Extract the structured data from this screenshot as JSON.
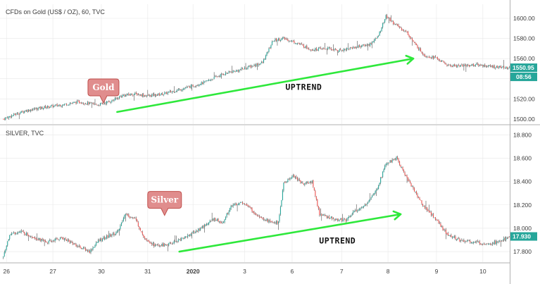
{
  "colors": {
    "up": "#26a69a",
    "down": "#ef5350",
    "wick": "#2b2b2b",
    "arrow": "#2ee83b",
    "callout_fill": "#e08d8d",
    "callout_stroke": "#c0504d",
    "price_badge": "#26a69a",
    "grid": "#e8e8e8",
    "axis_line": "#b0b0b0"
  },
  "chart_data": [
    {
      "type": "candlestick",
      "title": "CFDs on Gold (US$ / OZ), 60, TVC",
      "y_ticks": [
        "1500.00",
        "1520.00",
        "1540.00",
        "1560.00",
        "1580.00",
        "1600.00"
      ],
      "ylim": [
        1495,
        1614
      ],
      "last_price": "1550.95",
      "countdown": "08:56",
      "anchors": [
        [
          0,
          1500
        ],
        [
          7,
          1503
        ],
        [
          20,
          1508
        ],
        [
          35,
          1511
        ],
        [
          55,
          1514
        ],
        [
          72,
          1517
        ],
        [
          90,
          1514
        ],
        [
          103,
          1518
        ],
        [
          112,
          1523
        ],
        [
          124,
          1525
        ],
        [
          137,
          1523
        ],
        [
          152,
          1525
        ],
        [
          170,
          1530
        ],
        [
          190,
          1536
        ],
        [
          209,
          1545
        ],
        [
          222,
          1548
        ],
        [
          234,
          1552
        ],
        [
          246,
          1556
        ],
        [
          256,
          1578
        ],
        [
          266,
          1580
        ],
        [
          280,
          1575
        ],
        [
          292,
          1569
        ],
        [
          308,
          1570
        ],
        [
          318,
          1568
        ],
        [
          332,
          1571
        ],
        [
          347,
          1574
        ],
        [
          355,
          1581
        ],
        [
          363,
          1602
        ],
        [
          373,
          1593
        ],
        [
          383,
          1586
        ],
        [
          390,
          1575
        ],
        [
          400,
          1563
        ],
        [
          410,
          1561
        ],
        [
          422,
          1553
        ],
        [
          436,
          1553
        ],
        [
          450,
          1554
        ],
        [
          464,
          1552
        ],
        [
          480,
          1551
        ]
      ],
      "annotations": [
        {
          "type": "callout",
          "text": "Gold",
          "x": 95,
          "y": 1516
        },
        {
          "type": "trend-arrow",
          "text": "UPTREND",
          "from": [
            108,
            1507
          ],
          "to": [
            389,
            1560
          ],
          "label_at": [
            285,
            1529
          ]
        }
      ]
    },
    {
      "type": "candlestick",
      "title": "SILVER, TVC",
      "y_ticks": [
        "17.800",
        "18.000",
        "18.200",
        "18.400",
        "18.600",
        "18.800"
      ],
      "ylim": [
        17.71,
        18.88
      ],
      "last_price": "17.930",
      "anchors": [
        [
          0,
          17.75
        ],
        [
          6,
          17.95
        ],
        [
          17,
          17.97
        ],
        [
          30,
          17.92
        ],
        [
          42,
          17.88
        ],
        [
          56,
          17.92
        ],
        [
          70,
          17.85
        ],
        [
          82,
          17.8
        ],
        [
          91,
          17.9
        ],
        [
          100,
          17.93
        ],
        [
          109,
          17.97
        ],
        [
          115,
          18.12
        ],
        [
          125,
          18.08
        ],
        [
          134,
          17.92
        ],
        [
          144,
          17.85
        ],
        [
          156,
          17.86
        ],
        [
          172,
          17.92
        ],
        [
          187,
          18.0
        ],
        [
          200,
          18.08
        ],
        [
          208,
          18.05
        ],
        [
          217,
          18.2
        ],
        [
          228,
          18.22
        ],
        [
          240,
          18.12
        ],
        [
          254,
          18.05
        ],
        [
          261,
          18.05
        ],
        [
          266,
          18.38
        ],
        [
          275,
          18.45
        ],
        [
          284,
          18.38
        ],
        [
          293,
          18.4
        ],
        [
          300,
          18.12
        ],
        [
          306,
          18.1
        ],
        [
          315,
          18.08
        ],
        [
          325,
          18.07
        ],
        [
          332,
          18.14
        ],
        [
          342,
          18.18
        ],
        [
          355,
          18.35
        ],
        [
          363,
          18.55
        ],
        [
          373,
          18.6
        ],
        [
          386,
          18.38
        ],
        [
          398,
          18.2
        ],
        [
          410,
          18.08
        ],
        [
          420,
          17.96
        ],
        [
          432,
          17.9
        ],
        [
          446,
          17.88
        ],
        [
          458,
          17.87
        ],
        [
          470,
          17.88
        ],
        [
          480,
          17.93
        ]
      ],
      "annotations": [
        {
          "type": "callout",
          "text": "Silver",
          "x": 153,
          "y": 18.11
        },
        {
          "type": "trend-arrow",
          "text": "UPTREND",
          "from": [
            167,
            17.8
          ],
          "to": [
            377,
            18.12
          ],
          "label_at": [
            317,
            17.87
          ]
        }
      ]
    }
  ],
  "x_ticks": [
    {
      "label": "26",
      "i": 3
    },
    {
      "label": "27",
      "i": 47
    },
    {
      "label": "30",
      "i": 93
    },
    {
      "label": "31",
      "i": 137
    },
    {
      "label": "2020",
      "i": 180
    },
    {
      "label": "3",
      "i": 229
    },
    {
      "label": "6",
      "i": 274
    },
    {
      "label": "7",
      "i": 321
    },
    {
      "label": "8",
      "i": 365
    },
    {
      "label": "9",
      "i": 411
    },
    {
      "label": "10",
      "i": 455
    }
  ]
}
